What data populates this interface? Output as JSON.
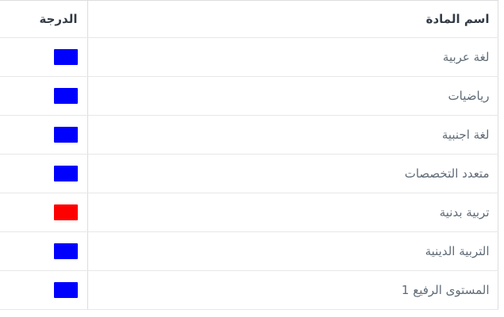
{
  "table": {
    "header": {
      "subject_label": "اسم المادة",
      "grade_label": "الدرجة"
    },
    "rows": [
      {
        "subject": "لغة عربية",
        "grade_color": "#0000ff"
      },
      {
        "subject": "رياضيات",
        "grade_color": "#0000ff"
      },
      {
        "subject": "لغة اجنبية",
        "grade_color": "#0000ff"
      },
      {
        "subject": "متعدد التخصصات",
        "grade_color": "#0000ff"
      },
      {
        "subject": "تربية بدنية",
        "grade_color": "#ff0000"
      },
      {
        "subject": "التربية الدينية",
        "grade_color": "#0000ff"
      },
      {
        "subject": "المستوى الرفيع 1",
        "grade_color": "#0000ff"
      }
    ]
  },
  "colors": {
    "grade_blue": "#0000ff",
    "grade_red": "#ff0000",
    "border": "#dddddd",
    "border_light": "#e7e7e7",
    "header_text": "#333b46",
    "row_text": "#5f6b77",
    "background": "#ffffff"
  }
}
